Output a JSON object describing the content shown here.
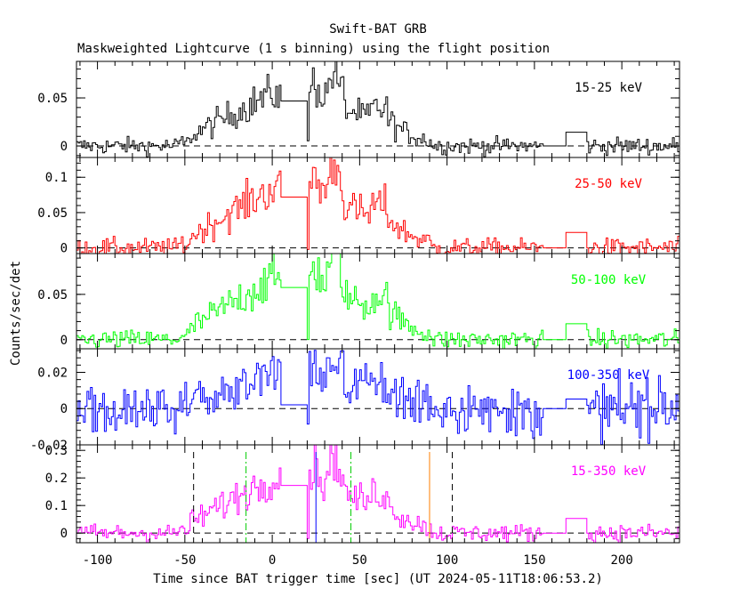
{
  "title": "Swift-BAT GRB",
  "subtitle": "Maskweighted Lightcurve (1 s binning) using the flight position",
  "xlabel": "Time since BAT trigger time [sec] (UT 2024-05-11T18:06:53.2)",
  "ylabel": "Counts/sec/det",
  "chart_data": {
    "type": "line",
    "title": "Swift-BAT GRB",
    "subtitle": "Maskweighted Lightcurve (1 s binning) using the flight position",
    "xlabel": "Time since BAT trigger time [sec] (UT 2024-05-11T18:06:53.2)",
    "ylabel": "Counts/sec/det",
    "xlim": [
      -112,
      233
    ],
    "x_ticks": [
      -100,
      -50,
      0,
      50,
      100,
      150,
      200
    ],
    "x_tick_labels": [
      "-100",
      "-50",
      "0",
      "50",
      "100",
      "150",
      "200"
    ],
    "data_gaps": [
      [
        5,
        20
      ],
      [
        155,
        168
      ],
      [
        168,
        180
      ]
    ],
    "panels": [
      {
        "name": "15-25 keV",
        "color": "#000000",
        "ylim": [
          -0.012,
          0.088
        ],
        "y_ticks": [
          0,
          0.05
        ],
        "y_tick_labels": [
          "0",
          "0.05"
        ],
        "scale": 0.065,
        "zero_line": true
      },
      {
        "name": "25-50 keV",
        "color": "#ff0000",
        "ylim": [
          -0.008,
          0.128
        ],
        "y_ticks": [
          0,
          0.05,
          0.1
        ],
        "y_tick_labels": [
          "0",
          "0.05",
          "0.1"
        ],
        "scale": 0.1,
        "zero_line": true
      },
      {
        "name": "50-100 keV",
        "color": "#00ff00",
        "ylim": [
          -0.01,
          0.095
        ],
        "y_ticks": [
          0,
          0.05
        ],
        "y_tick_labels": [
          "0",
          "0.05"
        ],
        "scale": 0.08,
        "zero_line": true
      },
      {
        "name": "100-350 keV",
        "color": "#0000ff",
        "ylim": [
          -0.02,
          0.033
        ],
        "y_ticks": [
          -0.02,
          0,
          0.02
        ],
        "y_tick_labels": [
          "-0.02",
          "0",
          "0.02"
        ],
        "scale": 0.024,
        "zero_line": true
      },
      {
        "name": "15-350 keV",
        "color": "#ff00ff",
        "ylim": [
          -0.035,
          0.32
        ],
        "y_ticks": [
          0,
          0.1,
          0.2,
          0.3
        ],
        "y_tick_labels": [
          "0",
          "0.1",
          "0.2",
          "0.3"
        ],
        "scale": 0.24,
        "zero_line": true
      }
    ],
    "vertical_markers": [
      {
        "x": -45,
        "color": "#000000",
        "style": "dashed"
      },
      {
        "x": 103,
        "color": "#000000",
        "style": "dashed"
      },
      {
        "x": -15,
        "color": "#00cc00",
        "style": "dash-dot"
      },
      {
        "x": 45,
        "color": "#00cc00",
        "style": "dash-dot"
      },
      {
        "x": 25,
        "color": "#0000ff",
        "style": "solid"
      },
      {
        "x": 90,
        "color": "#ff7f00",
        "style": "solid"
      }
    ]
  }
}
